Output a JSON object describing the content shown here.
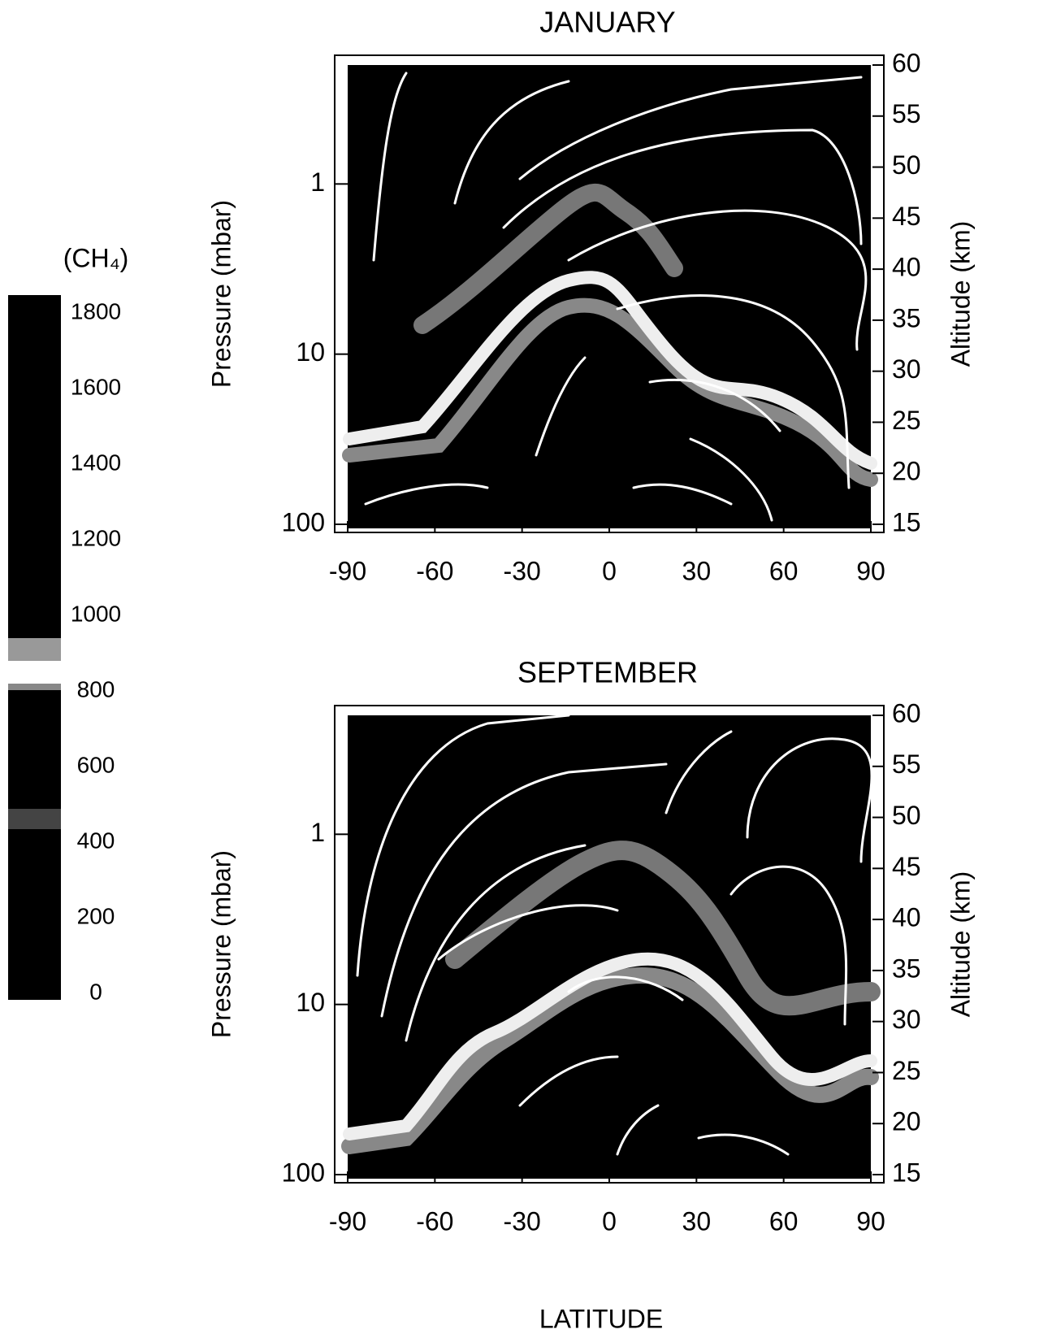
{
  "colorbar": {
    "label": "(CH₄)",
    "lim": [
      0,
      1800
    ],
    "ticks": [
      0,
      200,
      400,
      600,
      800,
      1000,
      1200,
      1400,
      1600,
      1800
    ]
  },
  "chart_data": [
    {
      "type": "contour",
      "title": "JANUARY",
      "ylabel": "Pressure (mbar)",
      "y2label": "Altitude (km)",
      "xlim": [
        -90,
        90
      ],
      "xticks": [
        -90,
        -60,
        -30,
        0,
        30,
        60,
        90
      ],
      "ylim": [
        100,
        0.2
      ],
      "ylog": true,
      "yticks": [
        1,
        10,
        100
      ],
      "y2lim": [
        15,
        60
      ],
      "y2ticks": [
        15,
        20,
        25,
        30,
        35,
        40,
        45,
        50,
        55,
        60
      ]
    },
    {
      "type": "contour",
      "title": "SEPTEMBER",
      "xlabel": "LATITUDE",
      "ylabel": "Pressure (mbar)",
      "y2label": "Altitude (km)",
      "xlim": [
        -90,
        90
      ],
      "xticks": [
        -90,
        -60,
        -30,
        0,
        30,
        60,
        90
      ],
      "ylim": [
        100,
        0.2
      ],
      "ylog": true,
      "yticks": [
        1,
        10,
        100
      ],
      "y2lim": [
        15,
        60
      ],
      "y2ticks": [
        15,
        20,
        25,
        30,
        35,
        40,
        45,
        50,
        55,
        60
      ]
    }
  ]
}
